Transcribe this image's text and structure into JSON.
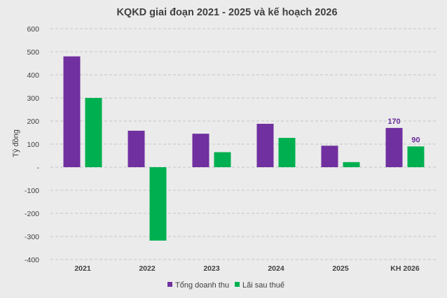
{
  "chart_data": {
    "type": "bar",
    "title": "KQKD giai đoạn 2021 - 2025 và kế hoạch 2026",
    "ylabel": "Tỷ đồng",
    "xlabel": "",
    "ylim": [
      -400,
      600
    ],
    "yticks": [
      600,
      500,
      400,
      300,
      200,
      100,
      0,
      -100,
      -200,
      -300,
      -400
    ],
    "ytick_labels": [
      "600",
      "500",
      "400",
      "300",
      "200",
      "100",
      "-",
      "-100",
      "-200",
      "-300",
      "-400"
    ],
    "grid": true,
    "legend_position": "bottom",
    "categories": [
      "2021",
      "2022",
      "2023",
      "2024",
      "2025",
      "KH 2026"
    ],
    "series": [
      {
        "name": "Tổng doanh thu",
        "color": "#7030a0",
        "values": [
          480,
          158,
          145,
          188,
          93,
          170
        ]
      },
      {
        "name": "Lãi sau thuế",
        "color": "#00b050",
        "values": [
          300,
          -318,
          65,
          127,
          22,
          90
        ]
      }
    ],
    "data_labels": [
      {
        "series": 0,
        "category": 5,
        "text": "170"
      },
      {
        "series": 1,
        "category": 5,
        "text": "90"
      }
    ],
    "label_color": "#6a2c9a"
  }
}
